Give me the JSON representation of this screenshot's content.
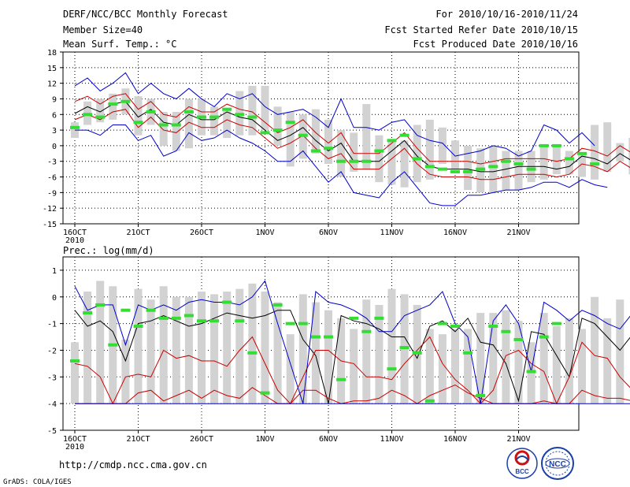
{
  "header": {
    "title": "DERF/NCC/BCC Monthly Forecast",
    "member": "Member Size=40",
    "var1": "Mean Surf. Temp.: °C",
    "period": "For 2010/10/16-2010/11/24",
    "refer": "Fcst Started Refer Date 2010/10/15",
    "produced": "Fcst Produced Date 2010/10/16"
  },
  "footer": {
    "url": "http://cmdp.ncc.cma.gov.cn",
    "credit": "GrADS: COLA/IGES",
    "logo_bcc": "BCC",
    "logo_ncc": "NCC"
  },
  "colors": {
    "box": "#d2d2d2",
    "mean": "#000000",
    "inner": "#cc0000",
    "outer": "#0000cc",
    "obs": "#33dd33"
  },
  "chart_data": [
    {
      "type": "line",
      "title": "Mean Surf. Temp.: °C",
      "x_ticks": [
        "16OCT",
        "21OCT",
        "26OCT",
        "1NOV",
        "6NOV",
        "11NOV",
        "16NOV",
        "21NOV"
      ],
      "x_year_label": "2010",
      "ylim": [
        -15,
        18
      ],
      "y_ticks": [
        -15,
        -12,
        -9,
        -6,
        -3,
        0,
        3,
        6,
        9,
        12,
        15,
        18
      ],
      "box_low": [
        1.5,
        4.0,
        4.5,
        5.0,
        6.0,
        2.0,
        4.0,
        0.0,
        -1.0,
        -0.5,
        2.0,
        2.0,
        1.5,
        2.0,
        2.0,
        3.0,
        0.0,
        -4.0,
        -2.5,
        -1.5,
        -3.5,
        -6.0,
        -5.0,
        -4.5,
        -7.0,
        -7.5,
        -8.0,
        -7.0,
        -6.5,
        -3.5,
        -4.5,
        -8.5,
        -9.0,
        -9.0,
        -8.5,
        -8.5,
        -7.0,
        -6.5,
        -5.5,
        -5.5,
        -6.0,
        -6.5,
        -5.0,
        -3.0,
        -5.5,
        -5.5,
        -5.0,
        -6.0
      ],
      "box_high": [
        4.5,
        8.5,
        9.0,
        10.0,
        11.0,
        9.5,
        9.0,
        6.5,
        6.5,
        9.0,
        9.0,
        7.5,
        7.0,
        10.5,
        11.5,
        11.5,
        7.5,
        6.5,
        6.0,
        7.0,
        5.0,
        3.0,
        2.5,
        8.0,
        2.0,
        1.0,
        1.0,
        4.0,
        5.0,
        3.5,
        1.0,
        0.0,
        -0.5,
        0.0,
        -1.0,
        -1.0,
        -1.0,
        0.0,
        0.0,
        -1.0,
        -1.5,
        4.0,
        4.5,
        0.5,
        1.5,
        1.0
      ],
      "series": [
        {
          "name": "ensemble mean",
          "role": "mean",
          "values": [
            6.2,
            7.5,
            6.5,
            8.0,
            8.5,
            5.5,
            7.0,
            4.5,
            4.0,
            6.0,
            5.0,
            5.0,
            6.5,
            5.5,
            5.0,
            3.0,
            1.0,
            2.0,
            3.5,
            1.0,
            -1.0,
            0.5,
            -3.0,
            -3.0,
            -3.0,
            -1.0,
            1.0,
            -2.0,
            -4.0,
            -4.5,
            -4.5,
            -4.5,
            -5.0,
            -5.0,
            -4.5,
            -4.0,
            -4.0,
            -4.0,
            -4.5,
            -4.0,
            -2.0,
            -2.5,
            -3.5,
            -1.5,
            -3.0
          ]
        },
        {
          "name": "inner spread upper",
          "role": "inner",
          "values": [
            8.5,
            9.5,
            8.0,
            9.5,
            10.0,
            7.0,
            8.5,
            6.0,
            5.5,
            7.5,
            6.5,
            6.5,
            8.0,
            7.0,
            6.5,
            4.5,
            2.5,
            3.5,
            5.0,
            2.5,
            0.5,
            2.5,
            -1.5,
            -1.5,
            -1.5,
            0.5,
            2.5,
            -0.5,
            -3.0,
            -3.0,
            -3.0,
            -3.0,
            -3.5,
            -3.0,
            -2.5,
            -2.5,
            -2.5,
            -2.5,
            -3.0,
            -2.5,
            -0.5,
            -1.0,
            -2.0,
            0.0,
            -1.5
          ]
        },
        {
          "name": "inner spread lower",
          "role": "inner",
          "values": [
            5.0,
            6.0,
            5.0,
            6.5,
            7.0,
            3.5,
            5.5,
            3.0,
            2.5,
            4.5,
            3.5,
            3.5,
            5.0,
            4.0,
            3.5,
            1.5,
            -0.5,
            0.5,
            2.0,
            -0.5,
            -2.5,
            -1.5,
            -4.5,
            -4.5,
            -4.5,
            -2.5,
            -0.5,
            -3.5,
            -5.5,
            -6.0,
            -6.0,
            -6.0,
            -6.5,
            -6.5,
            -6.0,
            -5.5,
            -5.5,
            -5.5,
            -6.0,
            -5.5,
            -3.5,
            -4.0,
            -5.0,
            -3.0,
            -4.5
          ]
        },
        {
          "name": "outer spread upper",
          "role": "outer",
          "values": [
            11.5,
            13.0,
            10.5,
            12.0,
            14.0,
            10.0,
            12.0,
            10.0,
            9.0,
            11.0,
            9.0,
            7.5,
            10.0,
            9.0,
            10.0,
            7.5,
            6.0,
            6.5,
            7.0,
            5.5,
            3.5,
            9.0,
            3.5,
            3.5,
            3.0,
            4.5,
            5.0,
            2.0,
            1.0,
            0.5,
            -2.0,
            -1.5,
            -1.0,
            0.0,
            -0.5,
            -2.0,
            -1.0,
            4.0,
            3.0,
            0.5,
            2.5,
            0.0
          ]
        },
        {
          "name": "outer spread lower",
          "role": "outer",
          "values": [
            3.0,
            3.0,
            2.0,
            4.0,
            4.0,
            1.0,
            2.0,
            -2.0,
            -1.0,
            2.5,
            1.0,
            1.5,
            3.0,
            1.5,
            0.5,
            -1.0,
            -3.0,
            -3.0,
            -1.0,
            -4.0,
            -7.0,
            -5.0,
            -9.0,
            -9.5,
            -10.0,
            -7.0,
            -5.0,
            -8.0,
            -11.0,
            -11.5,
            -11.5,
            -9.5,
            -9.5,
            -9.0,
            -8.5,
            -8.5,
            -8.0,
            -7.0,
            -7.0,
            -8.0,
            -6.5,
            -7.5,
            -8.0
          ]
        },
        {
          "name": "observation/median",
          "role": "marker",
          "values": [
            3.5,
            6.0,
            5.5,
            8.0,
            8.5,
            4.5,
            6.5,
            4.0,
            4.0,
            6.5,
            5.5,
            5.5,
            7.0,
            6.0,
            5.5,
            2.5,
            3.0,
            4.5,
            2.0,
            -1.0,
            -0.5,
            -3.0,
            -3.0,
            -3.0,
            -1.0,
            1.0,
            2.0,
            -2.5,
            -4.0,
            -4.5,
            -5.0,
            -5.0,
            -4.5,
            -4.0,
            -3.0,
            -3.5,
            -4.5,
            0.0,
            0.0,
            -2.5,
            -1.5,
            -3.5
          ]
        }
      ]
    },
    {
      "type": "line",
      "title": "Prec.: log(mm/d)",
      "x_ticks": [
        "16OCT",
        "21OCT",
        "26OCT",
        "1NOV",
        "6NOV",
        "11NOV",
        "16NOV",
        "21NOV"
      ],
      "x_year_label": "2010",
      "ylim": [
        -5,
        1.5
      ],
      "y_ticks": [
        -5,
        -4,
        -3,
        -2,
        -1,
        0,
        1
      ],
      "box_low": [
        -4,
        -4,
        -4,
        -4,
        -4,
        -4,
        -4,
        -4,
        -4,
        -4,
        -4,
        -4,
        -4,
        -4,
        -4,
        -4,
        -4,
        -4,
        -4,
        -4,
        -4,
        -4,
        -4,
        -4,
        -4,
        -4,
        -4,
        -4,
        -4,
        -4,
        -4,
        -4,
        -4,
        -4,
        -4,
        -4,
        -4,
        -4,
        -4,
        -4,
        -4,
        -4,
        -4,
        -4,
        -4,
        -4
      ],
      "box_high": [
        -1.7,
        0.2,
        0.6,
        0.4,
        -1.6,
        0.3,
        -0.1,
        0.4,
        0.0,
        0.0,
        0.2,
        0.1,
        0.2,
        0.3,
        0.5,
        0.2,
        -0.2,
        -1.4,
        0.1,
        -0.2,
        -0.5,
        -0.8,
        -1.2,
        -0.1,
        -0.3,
        0.3,
        0.1,
        -0.3,
        -1.2,
        -1.4,
        -1.2,
        -1.2,
        -0.6,
        -0.6,
        -0.5,
        -0.9,
        -1.7,
        -0.6,
        -1.1,
        -0.8,
        -1.2,
        0.0,
        -0.8,
        -0.1
      ],
      "series": [
        {
          "name": "ensemble mean",
          "role": "mean",
          "values": [
            -0.5,
            -1.1,
            -0.9,
            -1.3,
            -2.4,
            -1.0,
            -0.9,
            -0.7,
            -0.9,
            -1.1,
            -1.0,
            -0.8,
            -0.6,
            -0.7,
            -0.8,
            -0.7,
            -0.5,
            -0.5,
            -1.6,
            -2.2,
            -4.0,
            -0.7,
            -0.9,
            -1.0,
            -1.2,
            -1.5,
            -1.5,
            -2.3,
            -1.1,
            -0.9,
            -1.3,
            -0.8,
            -1.7,
            -1.8,
            -2.5,
            -3.9,
            -1.3,
            -1.4,
            -2.2,
            -3.0,
            -0.8,
            -1.0,
            -1.5,
            -2.0,
            -1.4,
            -1.1,
            -1.1,
            -1.2
          ]
        },
        {
          "name": "inner spread upper",
          "role": "inner",
          "values": [
            -2.5,
            -2.6,
            -3.0,
            -4.0,
            -3.0,
            -2.9,
            -3.0,
            -2.0,
            -2.3,
            -2.2,
            -2.4,
            -2.4,
            -2.6,
            -2.0,
            -1.5,
            -2.5,
            -3.5,
            -4.0,
            -3.0,
            -2.0,
            -2.0,
            -2.4,
            -2.5,
            -3.0,
            -3.0,
            -3.1,
            -2.5,
            -2.0,
            -1.5,
            -2.5,
            -3.1,
            -3.5,
            -4.0,
            -3.5,
            -2.2,
            -2.0,
            -2.5,
            -2.8,
            -4.0,
            -3.0,
            -1.7,
            -2.2,
            -2.3,
            -3.0,
            -3.5,
            -2.5,
            -2.0,
            -1.9
          ]
        },
        {
          "name": "inner spread lower",
          "role": "inner",
          "values": [
            -4.0,
            -4.0,
            -4.0,
            -4.0,
            -4.0,
            -3.6,
            -3.5,
            -3.9,
            -3.7,
            -3.5,
            -3.8,
            -3.5,
            -3.7,
            -3.8,
            -3.4,
            -3.7,
            -4.0,
            -4.0,
            -3.5,
            -3.5,
            -3.8,
            -4.0,
            -3.9,
            -3.9,
            -3.8,
            -3.5,
            -3.7,
            -4.0,
            -3.7,
            -3.5,
            -3.3,
            -3.6,
            -3.8,
            -4.0,
            -4.0,
            -4.0,
            -4.0,
            -3.9,
            -4.0,
            -4.0,
            -3.5,
            -3.7,
            -3.8,
            -3.8,
            -3.9,
            -3.8,
            -3.6,
            -3.5
          ]
        },
        {
          "name": "outer spread upper",
          "role": "outer",
          "values": [
            0.4,
            -0.5,
            -0.3,
            -0.3,
            -1.8,
            -0.3,
            -0.5,
            -0.3,
            -0.5,
            -0.2,
            -0.1,
            -0.2,
            -0.2,
            -0.3,
            0.0,
            0.6,
            -1.0,
            -2.5,
            -4.0,
            0.2,
            -0.2,
            -0.3,
            -0.5,
            -0.8,
            -1.3,
            -1.3,
            -0.7,
            -0.5,
            -0.3,
            0.2,
            -1.0,
            -1.5,
            -4.0,
            -0.9,
            -0.3,
            -1.0,
            -2.8,
            -0.2,
            -0.5,
            -0.9,
            -0.5,
            -0.7,
            -1.0,
            -1.2,
            -0.6,
            -0.5
          ]
        },
        {
          "name": "outer spread lower",
          "role": "outer",
          "values": [
            -4,
            -4,
            -4,
            -4,
            -4,
            -4,
            -4,
            -4,
            -4,
            -4,
            -4,
            -4,
            -4,
            -4,
            -4,
            -4,
            -4,
            -4,
            -4,
            -4,
            -4,
            -4,
            -4,
            -4,
            -4,
            -4,
            -4,
            -4,
            -4,
            -4,
            -4,
            -4,
            -4,
            -4,
            -4,
            -4,
            -4,
            -4,
            -4,
            -4,
            -4,
            -4,
            -4,
            -4,
            -4,
            -4,
            -4
          ]
        },
        {
          "name": "observation/median",
          "role": "marker",
          "values": [
            -2.4,
            -0.6,
            -0.3,
            -1.8,
            -0.5,
            -1.1,
            -0.5,
            -0.8,
            -0.8,
            -0.7,
            -0.9,
            -0.9,
            -0.2,
            -0.9,
            -2.1,
            -3.6,
            -0.3,
            -1.0,
            -1.0,
            -1.5,
            -1.5,
            -3.1,
            -0.8,
            -1.3,
            -0.8,
            -2.7,
            -1.9,
            -2.1,
            -3.9,
            -1.0,
            -1.1,
            -2.1,
            -3.7,
            -1.1,
            -1.3,
            -1.6,
            -2.8,
            -1.5,
            -1.0
          ]
        }
      ]
    }
  ]
}
